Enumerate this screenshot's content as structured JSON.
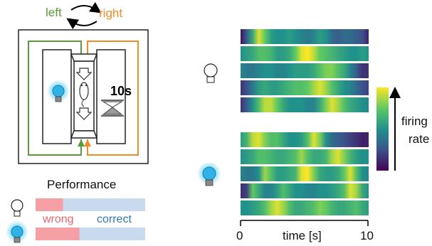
{
  "labels": {
    "left": "left",
    "right": "right",
    "timer": "10s",
    "performance_title": "Performance",
    "wrong": "wrong",
    "correct": "correct",
    "colorbar_label_line1": "firing",
    "colorbar_label_line2": "rate",
    "x_tick_0": "0",
    "x_tick_10": "10",
    "x_axis_label": "time [s]"
  },
  "colors": {
    "left_path": "#5b9a3c",
    "right_path": "#f08a24",
    "wrong": "#f4a0a4",
    "correct": "#c9d9ee",
    "light_glow": "#34c4ee",
    "viridis": [
      "#440154",
      "#3b528b",
      "#21918c",
      "#5ec962",
      "#fde725"
    ]
  },
  "performance": {
    "light_off_correct_fraction": 0.25,
    "light_on_correct_fraction": 0.4
  },
  "heatmap_groups": [
    {
      "light": "off",
      "rows": [
        [
          0.05,
          0.3,
          0.6,
          0.95,
          0.75,
          0.55,
          0.5,
          0.5,
          0.55,
          0.5,
          0.45,
          0.4,
          0.45,
          0.55,
          0.5,
          0.35,
          0.3,
          0.35,
          0.35,
          0.3,
          0.25,
          0.1
        ],
        [
          0.5,
          0.55,
          0.6,
          0.7,
          0.7,
          0.65,
          0.55,
          0.55,
          0.6,
          0.75,
          0.95,
          1.0,
          0.9,
          0.75,
          0.7,
          0.65,
          0.6,
          0.55,
          0.5,
          0.5,
          0.55,
          0.5
        ],
        [
          0.45,
          0.4,
          0.4,
          0.45,
          0.5,
          0.5,
          0.45,
          0.45,
          0.5,
          0.55,
          0.55,
          0.55,
          0.6,
          0.7,
          0.8,
          0.8,
          0.7,
          0.6,
          0.45,
          0.3,
          0.15,
          0.15
        ],
        [
          0.15,
          0.25,
          0.4,
          0.55,
          0.6,
          0.55,
          0.55,
          0.6,
          0.65,
          0.7,
          0.7,
          0.75,
          0.85,
          0.95,
          0.85,
          0.7,
          0.6,
          0.5,
          0.45,
          0.35,
          0.25,
          0.2
        ],
        [
          0.15,
          0.3,
          0.5,
          0.7,
          0.9,
          0.9,
          0.75,
          0.6,
          0.5,
          0.5,
          0.5,
          0.45,
          0.45,
          0.6,
          0.8,
          0.95,
          0.85,
          0.7,
          0.6,
          0.55,
          0.5,
          0.45
        ]
      ]
    },
    {
      "light": "on",
      "rows": [
        [
          0.55,
          0.65,
          0.9,
          0.95,
          0.8,
          0.7,
          0.7,
          0.6,
          0.5,
          0.5,
          0.55,
          0.7,
          0.95,
          0.8,
          0.5,
          0.35,
          0.3,
          0.25,
          0.2,
          0.15,
          0.1,
          0.1
        ],
        [
          0.5,
          0.55,
          0.6,
          0.7,
          0.7,
          0.65,
          0.6,
          0.6,
          0.65,
          0.7,
          0.85,
          0.7,
          0.6,
          0.6,
          0.65,
          0.85,
          0.95,
          0.8,
          0.65,
          0.55,
          0.5,
          0.5
        ],
        [
          0.45,
          0.4,
          0.4,
          0.5,
          0.85,
          0.7,
          0.55,
          0.55,
          0.6,
          0.65,
          0.95,
          1.0,
          0.8,
          0.6,
          0.55,
          0.55,
          0.6,
          0.75,
          0.95,
          0.7,
          0.5,
          0.45
        ],
        [
          0.15,
          0.2,
          0.75,
          0.6,
          0.45,
          0.45,
          0.55,
          0.7,
          0.6,
          0.5,
          0.5,
          0.45,
          0.45,
          0.5,
          0.5,
          0.55,
          0.6,
          0.7,
          0.95,
          0.85,
          0.6,
          0.5
        ],
        [
          0.5,
          0.5,
          0.55,
          0.6,
          0.7,
          0.85,
          0.95,
          0.85,
          0.7,
          0.6,
          0.6,
          0.65,
          0.7,
          0.8,
          0.75,
          0.65,
          0.6,
          0.6,
          0.65,
          0.7,
          0.6,
          0.55
        ]
      ]
    }
  ]
}
